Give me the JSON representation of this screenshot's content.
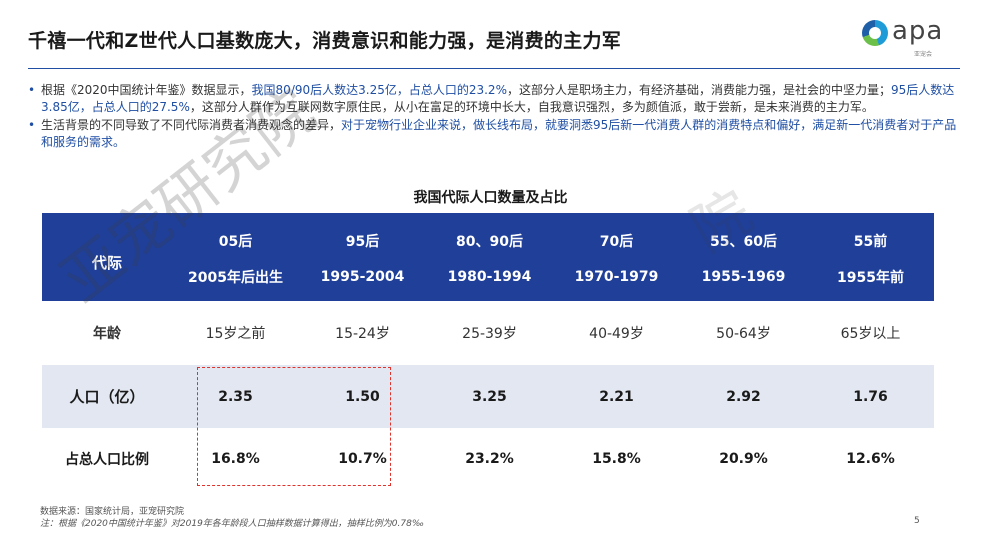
{
  "slide": {
    "title": "千禧一代和Z世代人口基数庞大，消费意识和能力强，是消费的主力军",
    "logo_text": "apa",
    "logo_subtext": "亚宠会",
    "page_number": "5",
    "accent_color": "#1f3f99",
    "highlight_color": "#1f4ea3",
    "box_color": "#e0312a"
  },
  "bullets": [
    {
      "parts": [
        {
          "text": "根据《2020中国统计年鉴》数据显示，",
          "hl": false
        },
        {
          "text": "我国80/90后人数达3.25亿，占总人口的23.2%",
          "hl": true
        },
        {
          "text": "，这部分人是职场主力，有经济基础，消费能力强，是社会的中坚力量；",
          "hl": false
        },
        {
          "text": "95后人数达3.85亿，占总人口的27.5%",
          "hl": true
        },
        {
          "text": "，这部分人群作为互联网数字原住民，从小在富足的环境中长大，自我意识强烈，多为颜值派，敢于尝新，是未来消费的主力军。",
          "hl": false
        }
      ]
    },
    {
      "parts": [
        {
          "text": "生活背景的不同导致了不同代际消费者消费观念的差异，",
          "hl": false
        },
        {
          "text": "对于宠物行业企业来说，做长线布局，就要洞悉95后新一代消费人群的消费特点和偏好，满足新一代消费者对于产品和服务的需求。",
          "hl": true
        }
      ]
    }
  ],
  "table": {
    "title": "我国代际人口数量及占比",
    "corner_label": "代际",
    "generations": [
      "05后",
      "95后",
      "80、90后",
      "70后",
      "55、60后",
      "55前"
    ],
    "birth_years": [
      "2005年后出生",
      "1995-2004",
      "1980-1994",
      "1970-1979",
      "1955-1969",
      "1955年前"
    ],
    "rows": [
      {
        "label": "年龄",
        "values": [
          "15岁之前",
          "15-24岁",
          "25-39岁",
          "40-49岁",
          "50-64岁",
          "65岁以上"
        ]
      },
      {
        "label": "人口（亿）",
        "values": [
          "2.35",
          "1.50",
          "3.25",
          "2.21",
          "2.92",
          "1.76"
        ]
      },
      {
        "label": "占总人口比例",
        "values": [
          "16.8%",
          "10.7%",
          "23.2%",
          "15.8%",
          "20.9%",
          "12.6%"
        ]
      }
    ]
  },
  "watermarks": [
    "亚宠研究院",
    "院"
  ],
  "footer": {
    "source": "数据来源：国家统计局，亚宠研究院",
    "note": "注：根据《2020中国统计年鉴》对2019年各年龄段人口抽样数据计算得出，抽样比例为0.78‰"
  }
}
